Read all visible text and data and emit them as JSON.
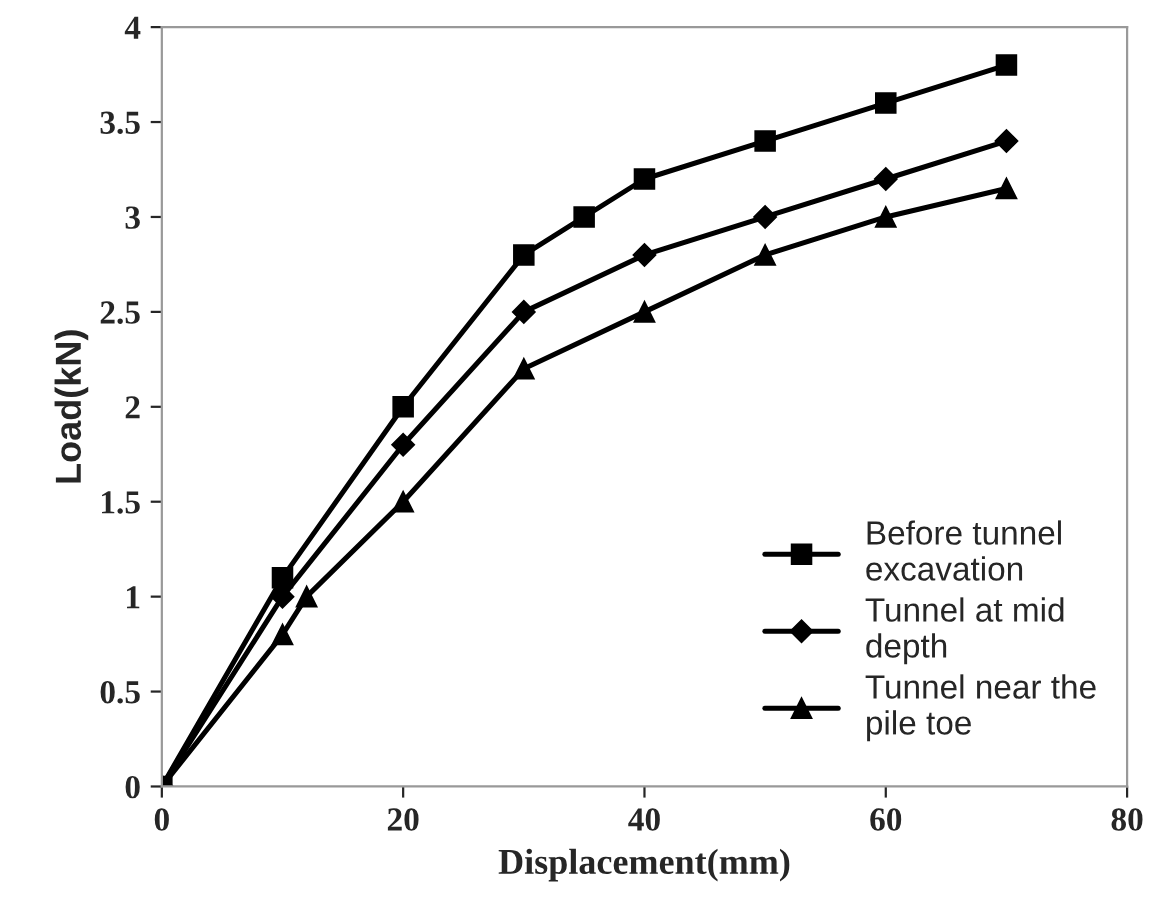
{
  "chart_data": {
    "type": "line",
    "xlabel": "Displacement(mm)",
    "ylabel": "Load(kN)",
    "xlim": [
      0,
      80
    ],
    "xticks": [
      0,
      20,
      40,
      60,
      80
    ],
    "ylim": [
      0,
      4
    ],
    "yticks": [
      0,
      0.5,
      1,
      1.5,
      2,
      2.5,
      3,
      3.5,
      4
    ],
    "grid": false,
    "legend": "bottom right",
    "line_style": "solid",
    "series": [
      {
        "name": "Before tunnel\nexcavation",
        "color": "#000000",
        "marker": "square",
        "x": [
          0,
          10,
          20,
          30,
          35,
          40,
          50,
          60,
          70
        ],
        "values": [
          0,
          1.1,
          2,
          2.8,
          3,
          3.2,
          3.4,
          3.6,
          3.8
        ]
      },
      {
        "name": "Tunnel at mid\ndepth",
        "color": "#000000",
        "marker": "diamond",
        "x": [
          0,
          10,
          20,
          30,
          40,
          50,
          60,
          70
        ],
        "values": [
          0,
          1.0,
          1.8,
          2.5,
          2.8,
          3.0,
          3.2,
          3.4
        ]
      },
      {
        "name": "Tunnel near the\npile toe",
        "color": "#000000",
        "marker": "triangle",
        "x": [
          0,
          10,
          12,
          20,
          30,
          40,
          50,
          60,
          70
        ],
        "values": [
          0,
          0.8,
          1.0,
          1.5,
          2.2,
          2.5,
          2.8,
          3.0,
          3.15
        ]
      }
    ]
  }
}
